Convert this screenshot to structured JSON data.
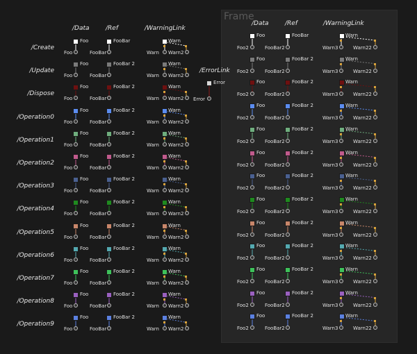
{
  "frame": {
    "title": "Frame"
  },
  "headers": {
    "data": "/Data",
    "ref": "/Ref",
    "warning": "/WarningLink",
    "error": "/ErrorLink"
  },
  "rows": [
    {
      "label": "/Create",
      "color": "#ffffff"
    },
    {
      "label": "/Update",
      "color": "#7a7a7a"
    },
    {
      "label": "/Dispose",
      "color": "#6e1010"
    },
    {
      "label": "/Operation0",
      "color": "#5b8cf0"
    },
    {
      "label": "/Operation1",
      "color": "#6fae7e"
    },
    {
      "label": "/Operation2",
      "color": "#c05a8c"
    },
    {
      "label": "/Operation3",
      "color": "#4a6090"
    },
    {
      "label": "/Operation4",
      "color": "#1f8a1f"
    },
    {
      "label": "/Operation5",
      "color": "#c8866a"
    },
    {
      "label": "/Operation6",
      "color": "#54a9b0"
    },
    {
      "label": "/Operation7",
      "color": "#3ec25a"
    },
    {
      "label": "/Operation8",
      "color": "#9a60c0"
    },
    {
      "label": "/Operation9",
      "color": "#5b80e0"
    }
  ],
  "left": {
    "data_top": "Foo",
    "data_bottom": "Foo",
    "ref_tops": [
      "FooBar",
      "FooBar 2",
      "FooBar 2",
      "FooBar 2",
      "FooBar 2",
      "FooBar 2",
      "FooBar 2",
      "FooBar 2",
      "FooBar 2",
      "FooBar 2",
      "FooBar 2",
      "FooBar 2",
      "FooBar 2"
    ],
    "ref_bottom": "FooBar",
    "warn_top": "Warn",
    "warn_bottom_left": "Warn",
    "warn_bottom_right": "Warn2",
    "error_top": "Error",
    "error_bottom": "Error"
  },
  "right": {
    "data_top": "Foo",
    "data_bottom": "Foo2",
    "ref_tops": [
      "FooBar",
      "FooBar 2",
      "FooBar 2",
      "FooBar 2",
      "FooBar 2",
      "FooBar 2",
      "FooBar 2",
      "FooBar 2",
      "FooBar 2",
      "FooBar 2",
      "FooBar 2",
      "FooBar 2",
      "FooBar 2"
    ],
    "ref_bottom": "FooBar2",
    "warn_top": "Warn",
    "warn_bottom_left": "Warn3",
    "warn_bottom_right": "Warn22"
  },
  "colors": {
    "background": "#1a1a1a",
    "frame": "#262626",
    "handle": "#d8a23a",
    "error_link": "#8b1a1a"
  }
}
